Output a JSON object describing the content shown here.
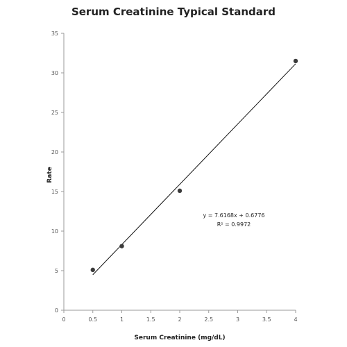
{
  "chart_data": {
    "type": "scatter",
    "title": "Serum Creatinine Typical Standard",
    "xlabel": "Serum Creatinine (mg/dL)",
    "ylabel": "Rate",
    "xlim": [
      0,
      4
    ],
    "ylim": [
      0,
      35
    ],
    "x_ticks": [
      "0",
      "0.5",
      "1",
      "1.5",
      "2",
      "2.5",
      "3",
      "3.5",
      "4"
    ],
    "y_ticks": [
      "0",
      "5",
      "10",
      "15",
      "20",
      "25",
      "30",
      "35"
    ],
    "grid": false,
    "legend": "none",
    "series": [
      {
        "x": [
          0.5,
          1,
          2,
          4
        ],
        "y": [
          5.1,
          8.1,
          15.1,
          31.5
        ],
        "color": "#3b3b3b"
      }
    ],
    "trendline": {
      "slope": 7.6168,
      "intercept": 0.6776,
      "x_range": [
        0.5,
        4
      ],
      "color": "#111111"
    },
    "annotations": {
      "equation": "y = 7.6168x + 0.6776",
      "r_squared": "R² = 0.9972"
    }
  }
}
